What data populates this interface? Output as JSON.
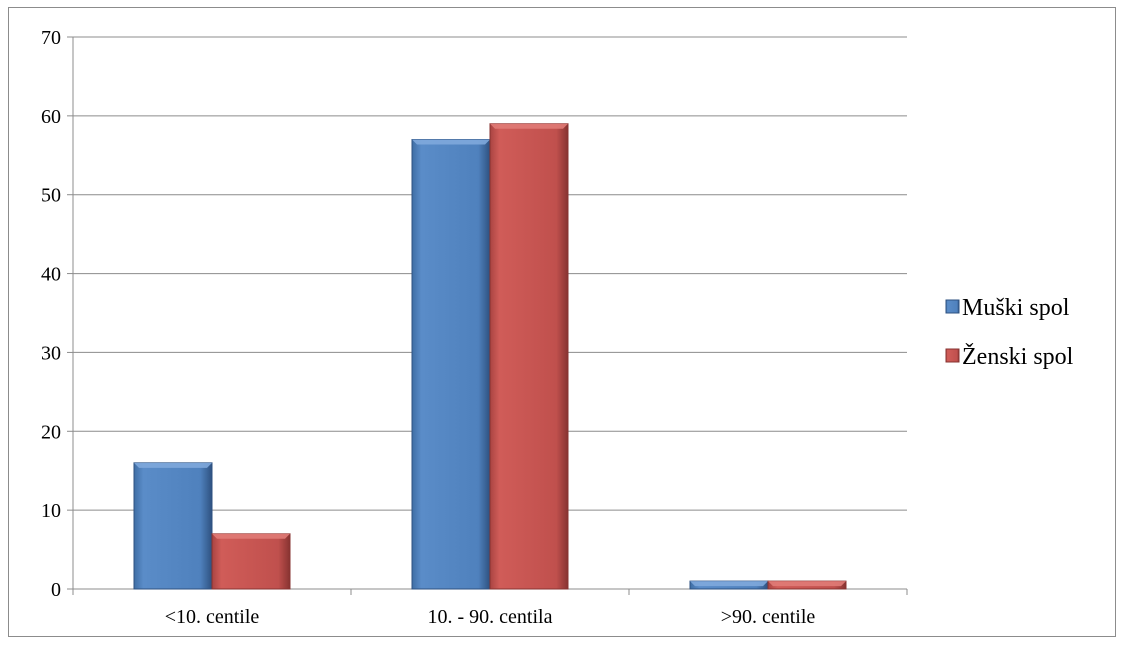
{
  "chart_data": {
    "type": "bar",
    "categories": [
      "<10. centile",
      "10. - 90. centila",
      ">90. centile"
    ],
    "series": [
      {
        "name": "Muški spol",
        "values": [
          16,
          57,
          1
        ],
        "color": "#4f81bd"
      },
      {
        "name": "Ženski spol",
        "values": [
          7,
          59,
          1
        ],
        "color": "#c0504d"
      }
    ],
    "yticks": [
      "0",
      "10",
      "20",
      "30",
      "40",
      "50",
      "60",
      "70"
    ],
    "ylim": [
      0,
      70
    ],
    "grid": true,
    "legend_position": "right"
  }
}
